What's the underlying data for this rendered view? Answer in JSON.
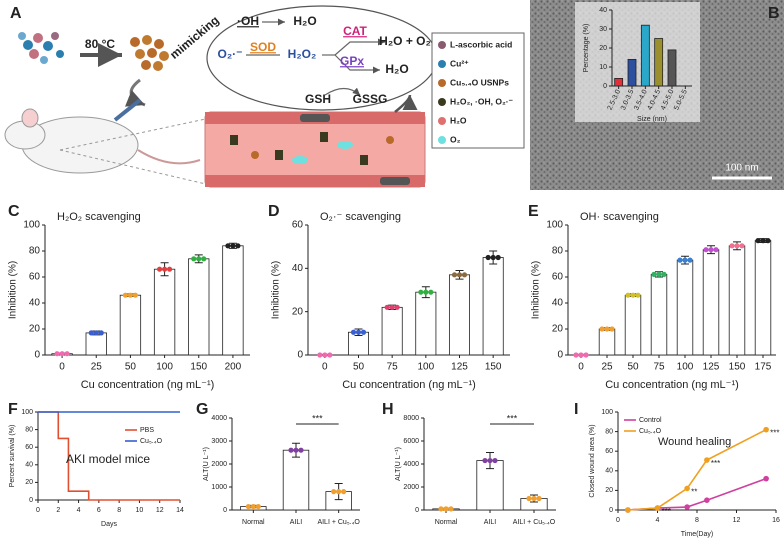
{
  "panel_labels": [
    "A",
    "B",
    "C",
    "D",
    "E",
    "F",
    "G",
    "H",
    "I"
  ],
  "diagram": {
    "temperature": "80 °C",
    "mimicking": "mimicking",
    "reaction_texts": [
      "·OH",
      "H₂O",
      "O₂·⁻",
      "SOD",
      "H₂O₂",
      "CAT",
      "H₂O + O₂",
      "GPx",
      "H₂O",
      "GSH",
      "GSSG"
    ],
    "legend": [
      "L-ascorbic acid",
      "Cu²⁺",
      "Cu₅.₄O USNPs",
      "H₂O₂, ·OH, O₂·⁻",
      "H₂O",
      "O₂"
    ]
  },
  "micrograph": {
    "scale_bar": "100 nm"
  },
  "chart_data": [
    {
      "type": "bar",
      "xlabel": "Size (nm)",
      "ylabel": "Percentage (%)",
      "categories": [
        "2.5-3.0",
        "3.0-3.5",
        "3.5-4.0",
        "4.0-4.5",
        "4.5-5.0",
        "5.0-5.5"
      ],
      "values": [
        4,
        14,
        32,
        25,
        19,
        null
      ],
      "bar_colors": [
        "#e0303a",
        "#2c4fa0",
        "#2aa7c9",
        "#9a9030",
        "#555555",
        "#999999"
      ],
      "ylim": [
        0,
        40
      ],
      "yticks": [
        0,
        10,
        20,
        30,
        40
      ]
    },
    {
      "type": "bar",
      "title": "H₂O₂ scavenging",
      "xlabel": "Cu concentration (ng mL⁻¹)",
      "ylabel": "Inhibition (%)",
      "categories": [
        0,
        25,
        50,
        100,
        150,
        200
      ],
      "values": [
        1,
        17,
        46,
        66,
        74,
        84
      ],
      "errors": [
        0.5,
        1.5,
        1,
        5,
        3,
        2
      ],
      "dot_colors": [
        "#f06ab0",
        "#3a5fd0",
        "#f0a030",
        "#e04040",
        "#30b040",
        "#222222"
      ],
      "ylim": [
        0,
        100
      ],
      "yticks": [
        0,
        20,
        40,
        60,
        80,
        100
      ]
    },
    {
      "type": "bar",
      "title": "O₂·⁻ scavenging",
      "xlabel": "Cu concentration (ng mL⁻¹)",
      "ylabel": "Inhibition (%)",
      "categories": [
        0,
        50,
        75,
        100,
        125,
        150
      ],
      "values": [
        0,
        10.5,
        22,
        29,
        37,
        45
      ],
      "errors": [
        0.3,
        1.5,
        1,
        2.5,
        2,
        3
      ],
      "dot_colors": [
        "#f06ab0",
        "#3a5fd0",
        "#e04070",
        "#30b040",
        "#8a6a40",
        "#222222"
      ],
      "ylim": [
        0,
        60
      ],
      "yticks": [
        0,
        20,
        40,
        60
      ]
    },
    {
      "type": "bar",
      "title": "OH· scavenging",
      "xlabel": "Cu concentration (ng mL⁻¹)",
      "ylabel": "Inhibition (%)",
      "categories": [
        0,
        25,
        50,
        75,
        100,
        125,
        150,
        175
      ],
      "values": [
        0,
        20,
        46,
        62,
        73,
        81,
        84,
        88
      ],
      "errors": [
        0.5,
        1,
        1,
        2,
        3,
        3,
        3,
        1.5
      ],
      "dot_colors": [
        "#f06ab0",
        "#f0a030",
        "#d0c030",
        "#30b060",
        "#3a7fd0",
        "#c050d0",
        "#f07090",
        "#222222"
      ],
      "ylim": [
        0,
        100
      ],
      "yticks": [
        0,
        20,
        40,
        60,
        80,
        100
      ]
    },
    {
      "type": "line",
      "xlabel": "Days",
      "ylabel": "Percent survival (%)",
      "annotation": "AKI model mice",
      "series": [
        {
          "name": "PBS",
          "color": "#e05030",
          "x": [
            0,
            2,
            2,
            3,
            3,
            5,
            5,
            14
          ],
          "values": [
            100,
            100,
            70,
            70,
            10,
            10,
            0,
            0
          ]
        },
        {
          "name": "Cu₅.₄O",
          "color": "#3060d0",
          "x": [
            0,
            14
          ],
          "values": [
            100,
            100
          ]
        }
      ],
      "xlim": [
        0,
        14
      ],
      "xticks": [
        0,
        2,
        4,
        6,
        8,
        10,
        12,
        14
      ],
      "ylim": [
        0,
        100
      ],
      "yticks": [
        0,
        20,
        40,
        60,
        80,
        100
      ]
    },
    {
      "type": "bar",
      "ylabel": "ALT(U L⁻¹)",
      "significance": "***",
      "categories": [
        "Normal",
        "AILI",
        "AILI + Cu₅.₄O"
      ],
      "values": [
        150,
        2600,
        800
      ],
      "errors": [
        50,
        300,
        350
      ],
      "dot_colors": [
        "#f0a030",
        "#8040a0",
        "#f0a030"
      ],
      "ylim": [
        0,
        4000
      ],
      "yticks": [
        0,
        1000,
        2000,
        3000,
        4000
      ]
    },
    {
      "type": "bar",
      "ylabel": "ALT(U L⁻¹)",
      "significance": "***",
      "categories": [
        "Normal",
        "AILI",
        "AILI + Cu₅.₄O"
      ],
      "values": [
        100,
        4300,
        1000
      ],
      "errors": [
        50,
        700,
        300
      ],
      "dot_colors": [
        "#f0a030",
        "#8040a0",
        "#f0a030"
      ],
      "ylim": [
        0,
        8000
      ],
      "yticks": [
        0,
        2000,
        4000,
        6000,
        8000
      ]
    },
    {
      "type": "line",
      "xlabel": "Time(Day)",
      "ylabel": "Closed wound area (%)",
      "annotation": "Wound healing",
      "markers": true,
      "series": [
        {
          "name": "Control",
          "color": "#d040a0",
          "x": [
            1,
            4,
            7,
            9,
            15
          ],
          "values": [
            0,
            2,
            3,
            10,
            32
          ]
        },
        {
          "name": "Cu₅.₄O",
          "color": "#f0a020",
          "x": [
            1,
            4,
            7,
            9,
            15
          ],
          "values": [
            0,
            2,
            22,
            51,
            82
          ],
          "significance": [
            null,
            "***",
            "**",
            "***",
            "***"
          ]
        }
      ],
      "xlim": [
        0,
        16
      ],
      "xticks": [
        0,
        4,
        8,
        12,
        16
      ],
      "ylim": [
        0,
        100
      ],
      "yticks": [
        0,
        20,
        40,
        60,
        80,
        100
      ]
    }
  ]
}
